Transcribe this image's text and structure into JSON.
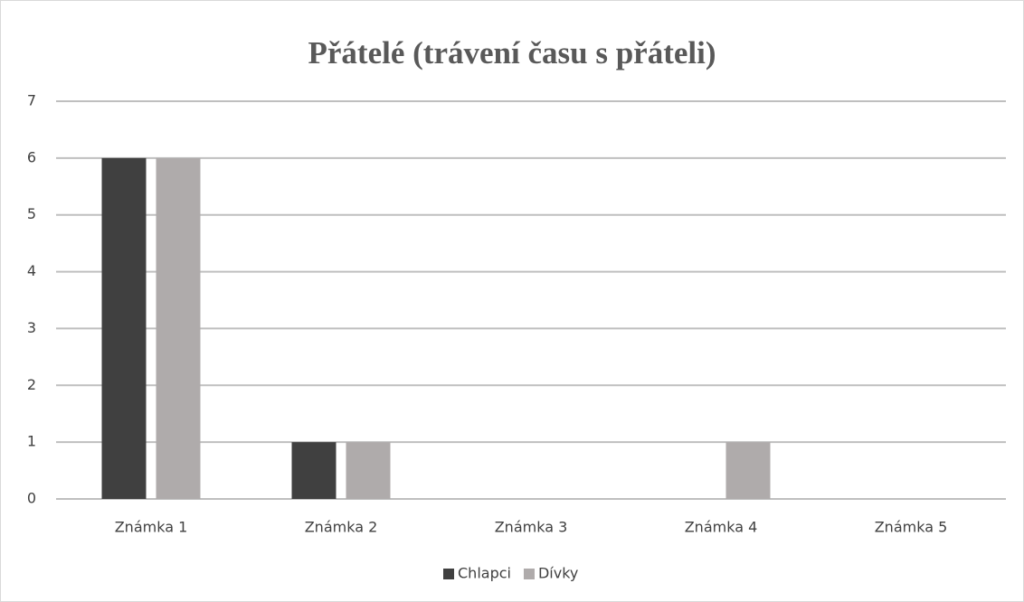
{
  "chart_data": {
    "type": "bar",
    "title": "Přátelé (trávení času s přáteli)",
    "categories": [
      "Známka 1",
      "Známka 2",
      "Známka 3",
      "Známka 4",
      "Známka 5"
    ],
    "series": [
      {
        "name": "Chlapci",
        "color": "#404040",
        "values": [
          6,
          1,
          0,
          0,
          0
        ]
      },
      {
        "name": "Dívky",
        "color": "#afabab",
        "values": [
          6,
          1,
          0,
          1,
          0
        ]
      }
    ],
    "ylim": [
      0,
      7
    ],
    "yticks": [
      0,
      1,
      2,
      3,
      4,
      5,
      6,
      7
    ],
    "grid": true,
    "legend": "bottom"
  }
}
